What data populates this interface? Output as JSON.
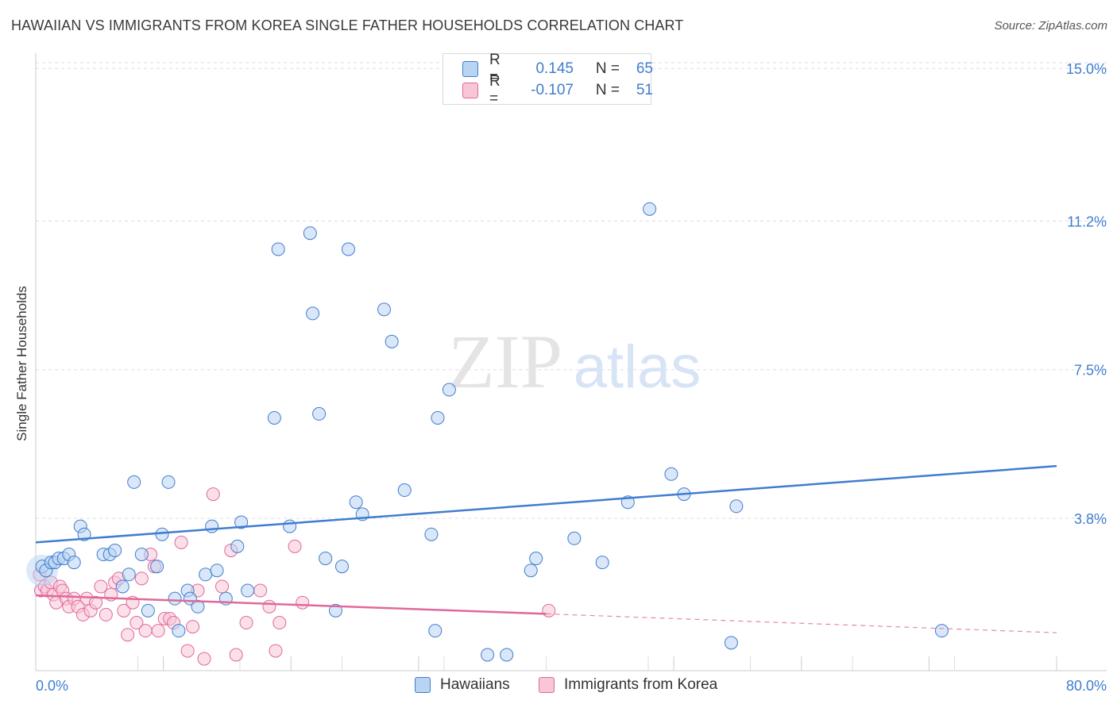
{
  "title": "HAWAIIAN VS IMMIGRANTS FROM KOREA SINGLE FATHER HOUSEHOLDS CORRELATION CHART",
  "source": "Source: ZipAtlas.com",
  "watermark": {
    "zip": "ZIP",
    "atlas": "atlas"
  },
  "colors": {
    "blue": "#3f7dd0",
    "blue_fill": "#b9d3f3",
    "pink": "#e0689a",
    "pink_fill": "#f8c6d7",
    "grid": "#dddddd",
    "tick_label": "#3f7dd0"
  },
  "legend": {
    "rows": [
      {
        "r_label": "R =",
        "r_value": "0.145",
        "n_label": "N =",
        "n_value": "65"
      },
      {
        "r_label": "R =",
        "r_value": "-0.107",
        "n_label": "N =",
        "n_value": "51"
      }
    ]
  },
  "bottom_legend": {
    "blue_label": "Hawaiians",
    "pink_label": "Immigrants from Korea"
  },
  "chart_data": {
    "type": "scatter",
    "title": "HAWAIIAN VS IMMIGRANTS FROM KOREA SINGLE FATHER HOUSEHOLDS CORRELATION CHART",
    "xlabel": "",
    "ylabel": "Single Father Households",
    "xlim": [
      0,
      80
    ],
    "ylim": [
      0,
      15.5
    ],
    "x_tick_labels": [
      "0.0%",
      "80.0%"
    ],
    "y_ticks": [
      3.8,
      7.5,
      11.2,
      15.0
    ],
    "y_tick_labels": [
      "3.8%",
      "7.5%",
      "11.2%",
      "15.0%"
    ],
    "grid": true,
    "series": [
      {
        "name": "Hawaiians",
        "r": 0.145,
        "n": 65,
        "trend": {
          "x0": 0,
          "y0": 3.2,
          "x1": 80,
          "y1": 5.1
        },
        "points": [
          [
            0.5,
            2.6
          ],
          [
            0.8,
            2.5
          ],
          [
            1.2,
            2.7
          ],
          [
            1.5,
            2.7
          ],
          [
            1.8,
            2.8
          ],
          [
            2.2,
            2.8
          ],
          [
            2.6,
            2.9
          ],
          [
            3.0,
            2.7
          ],
          [
            3.5,
            3.6
          ],
          [
            3.8,
            3.4
          ],
          [
            5.3,
            2.9
          ],
          [
            5.8,
            2.9
          ],
          [
            6.2,
            3.0
          ],
          [
            6.8,
            2.1
          ],
          [
            7.3,
            2.4
          ],
          [
            7.7,
            4.7
          ],
          [
            8.3,
            2.9
          ],
          [
            8.8,
            1.5
          ],
          [
            9.5,
            2.6
          ],
          [
            9.9,
            3.4
          ],
          [
            10.4,
            4.7
          ],
          [
            10.9,
            1.8
          ],
          [
            11.2,
            1.0
          ],
          [
            11.9,
            2.0
          ],
          [
            12.1,
            1.8
          ],
          [
            12.7,
            1.6
          ],
          [
            13.3,
            2.4
          ],
          [
            13.8,
            3.6
          ],
          [
            14.2,
            2.5
          ],
          [
            14.9,
            1.8
          ],
          [
            15.8,
            3.1
          ],
          [
            16.1,
            3.7
          ],
          [
            16.6,
            2.0
          ],
          [
            18.7,
            6.3
          ],
          [
            19.0,
            10.5
          ],
          [
            19.9,
            3.6
          ],
          [
            21.5,
            10.9
          ],
          [
            21.7,
            8.9
          ],
          [
            22.2,
            6.4
          ],
          [
            22.7,
            2.8
          ],
          [
            23.5,
            1.5
          ],
          [
            24.0,
            2.6
          ],
          [
            24.5,
            10.5
          ],
          [
            25.1,
            4.2
          ],
          [
            25.6,
            3.9
          ],
          [
            27.3,
            9.0
          ],
          [
            27.9,
            8.2
          ],
          [
            28.9,
            4.5
          ],
          [
            31.0,
            3.4
          ],
          [
            31.3,
            1.0
          ],
          [
            31.5,
            6.3
          ],
          [
            32.4,
            7.0
          ],
          [
            35.4,
            0.4
          ],
          [
            36.9,
            0.4
          ],
          [
            38.8,
            2.5
          ],
          [
            39.2,
            2.8
          ],
          [
            42.2,
            3.3
          ],
          [
            44.4,
            2.7
          ],
          [
            46.4,
            4.2
          ],
          [
            48.1,
            11.5
          ],
          [
            49.8,
            4.9
          ],
          [
            50.8,
            4.4
          ],
          [
            54.5,
            0.7
          ],
          [
            54.9,
            4.1
          ],
          [
            71.0,
            1.0
          ]
        ]
      },
      {
        "name": "Immigrants from Korea",
        "r": -0.107,
        "n": 51,
        "trend": {
          "x0": 0,
          "y0": 1.88,
          "x1": 40,
          "y1": 1.42,
          "dashed_to_x": 80,
          "dashed_to_y": 0.95
        },
        "points": [
          [
            0.3,
            2.4
          ],
          [
            0.4,
            2.0
          ],
          [
            0.7,
            2.1
          ],
          [
            0.9,
            2.0
          ],
          [
            1.2,
            2.2
          ],
          [
            1.4,
            1.9
          ],
          [
            1.6,
            1.7
          ],
          [
            1.9,
            2.1
          ],
          [
            2.1,
            2.0
          ],
          [
            2.4,
            1.8
          ],
          [
            2.6,
            1.6
          ],
          [
            3.0,
            1.8
          ],
          [
            3.3,
            1.6
          ],
          [
            3.7,
            1.4
          ],
          [
            4.0,
            1.8
          ],
          [
            4.3,
            1.5
          ],
          [
            4.7,
            1.7
          ],
          [
            5.1,
            2.1
          ],
          [
            5.5,
            1.4
          ],
          [
            5.9,
            1.9
          ],
          [
            6.2,
            2.2
          ],
          [
            6.5,
            2.3
          ],
          [
            6.9,
            1.5
          ],
          [
            7.2,
            0.9
          ],
          [
            7.6,
            1.7
          ],
          [
            7.9,
            1.2
          ],
          [
            8.3,
            2.3
          ],
          [
            8.6,
            1.0
          ],
          [
            9.0,
            2.9
          ],
          [
            9.3,
            2.6
          ],
          [
            9.6,
            1.0
          ],
          [
            10.1,
            1.3
          ],
          [
            10.5,
            1.3
          ],
          [
            10.8,
            1.2
          ],
          [
            11.4,
            3.2
          ],
          [
            11.9,
            0.5
          ],
          [
            12.3,
            1.1
          ],
          [
            12.7,
            2.0
          ],
          [
            13.2,
            0.3
          ],
          [
            13.9,
            4.4
          ],
          [
            14.6,
            2.1
          ],
          [
            15.3,
            3.0
          ],
          [
            15.7,
            0.4
          ],
          [
            16.5,
            1.2
          ],
          [
            17.6,
            2.0
          ],
          [
            18.3,
            1.6
          ],
          [
            18.8,
            0.5
          ],
          [
            19.1,
            1.2
          ],
          [
            20.3,
            3.1
          ],
          [
            20.9,
            1.7
          ],
          [
            40.2,
            1.5
          ]
        ]
      }
    ]
  }
}
